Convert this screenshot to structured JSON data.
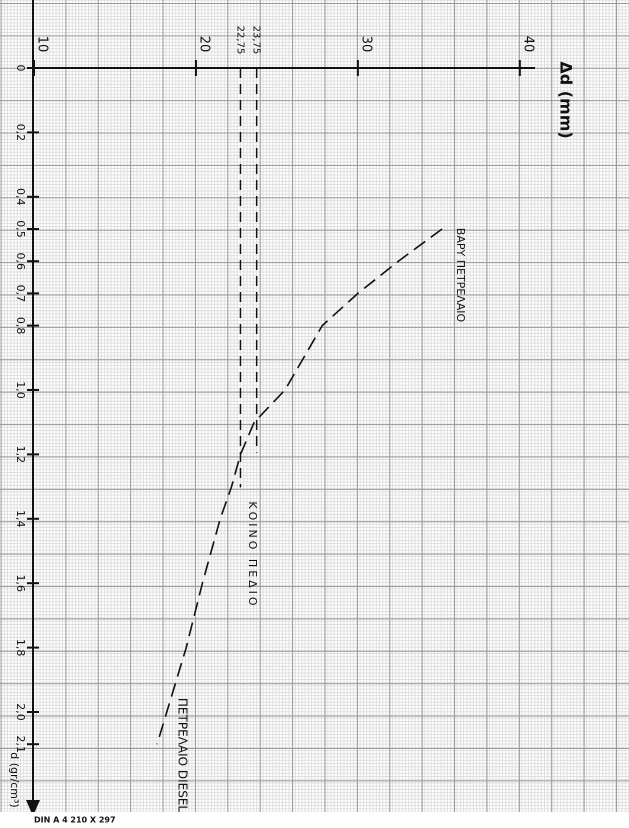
{
  "chart_data": {
    "type": "line",
    "y_label": "Δd (mm)",
    "x_label": "d (gr/cm³)",
    "xlim": [
      0,
      2.3
    ],
    "xticks": [
      0,
      {
        "value": 0.2,
        "label": "0,2"
      },
      {
        "value": 0.4,
        "label": "0,4"
      },
      {
        "value": 0.5,
        "label": "0,5"
      },
      {
        "value": 0.6,
        "label": "0,6"
      },
      {
        "value": 0.7,
        "label": "0,7"
      },
      {
        "value": 0.8,
        "label": "0,8"
      },
      {
        "value": 1.0,
        "label": "1,0"
      },
      {
        "value": 1.2,
        "label": "1,2"
      },
      {
        "value": 1.4,
        "label": "1,4"
      },
      {
        "value": 1.6,
        "label": "1,6"
      },
      {
        "value": 1.8,
        "label": "1,8"
      },
      {
        "value": 2.0,
        "label": "2,0"
      },
      {
        "value": 2.1,
        "label": "2,1"
      }
    ],
    "ylim": [
      10,
      41
    ],
    "yticks": [
      10,
      20,
      30,
      40
    ],
    "reference_lines": [
      {
        "value": 22.75,
        "label": "22,75"
      },
      {
        "value": 23.75,
        "label": "23,75"
      }
    ],
    "series": [
      {
        "color": "#111111",
        "x": [
          0.5,
          0.6,
          0.7,
          0.8,
          1.0,
          1.1,
          1.2,
          1.3,
          1.4,
          1.6,
          1.8,
          2.0,
          2.1
        ],
        "values": [
          35.2,
          32.5,
          30.0,
          27.8,
          25.5,
          23.6,
          22.75,
          22.2,
          21.5,
          20.4,
          19.4,
          18.2,
          17.6
        ]
      }
    ],
    "annotations": [
      "ΒΑΡΥ ΠΕΤΡΕΛΑΙΟ",
      "ΚΟΙΝΟ ΠΕΔΙΟ",
      "ΠΕΤΡΕΛΑΙΟ DIESEL"
    ],
    "footer": "DIN A 4   210 X 297"
  }
}
